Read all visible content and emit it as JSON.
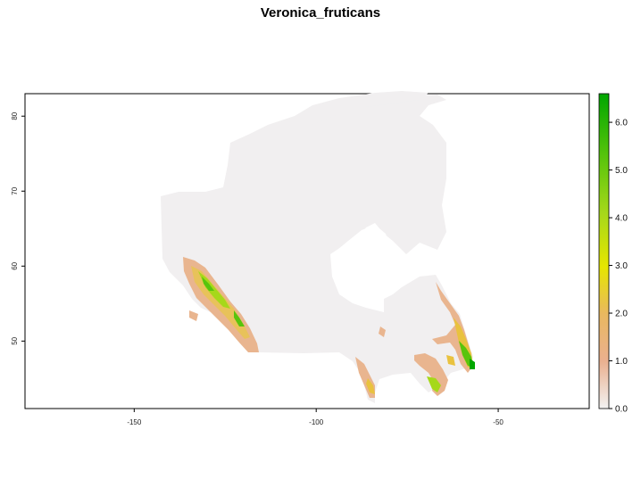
{
  "title": "Veronica_fruticans",
  "map": {
    "x_ticks": [
      -150,
      -100,
      -50
    ],
    "y_ticks": [
      50,
      60,
      70,
      80
    ],
    "xlim": [
      -180,
      -25
    ],
    "ylim": [
      41,
      83
    ],
    "background_color": "#f2f0f0"
  },
  "legend": {
    "min": 0.0,
    "max": 6.6,
    "labels": [
      "0.0",
      "1.0",
      "2.0",
      "3.0",
      "4.0",
      "5.0",
      "6.0"
    ],
    "colors": [
      "#f2f2f2",
      "#eab08f",
      "#e9c23f",
      "#e6e600",
      "#a6d81a",
      "#58c40c",
      "#00a600"
    ]
  }
}
